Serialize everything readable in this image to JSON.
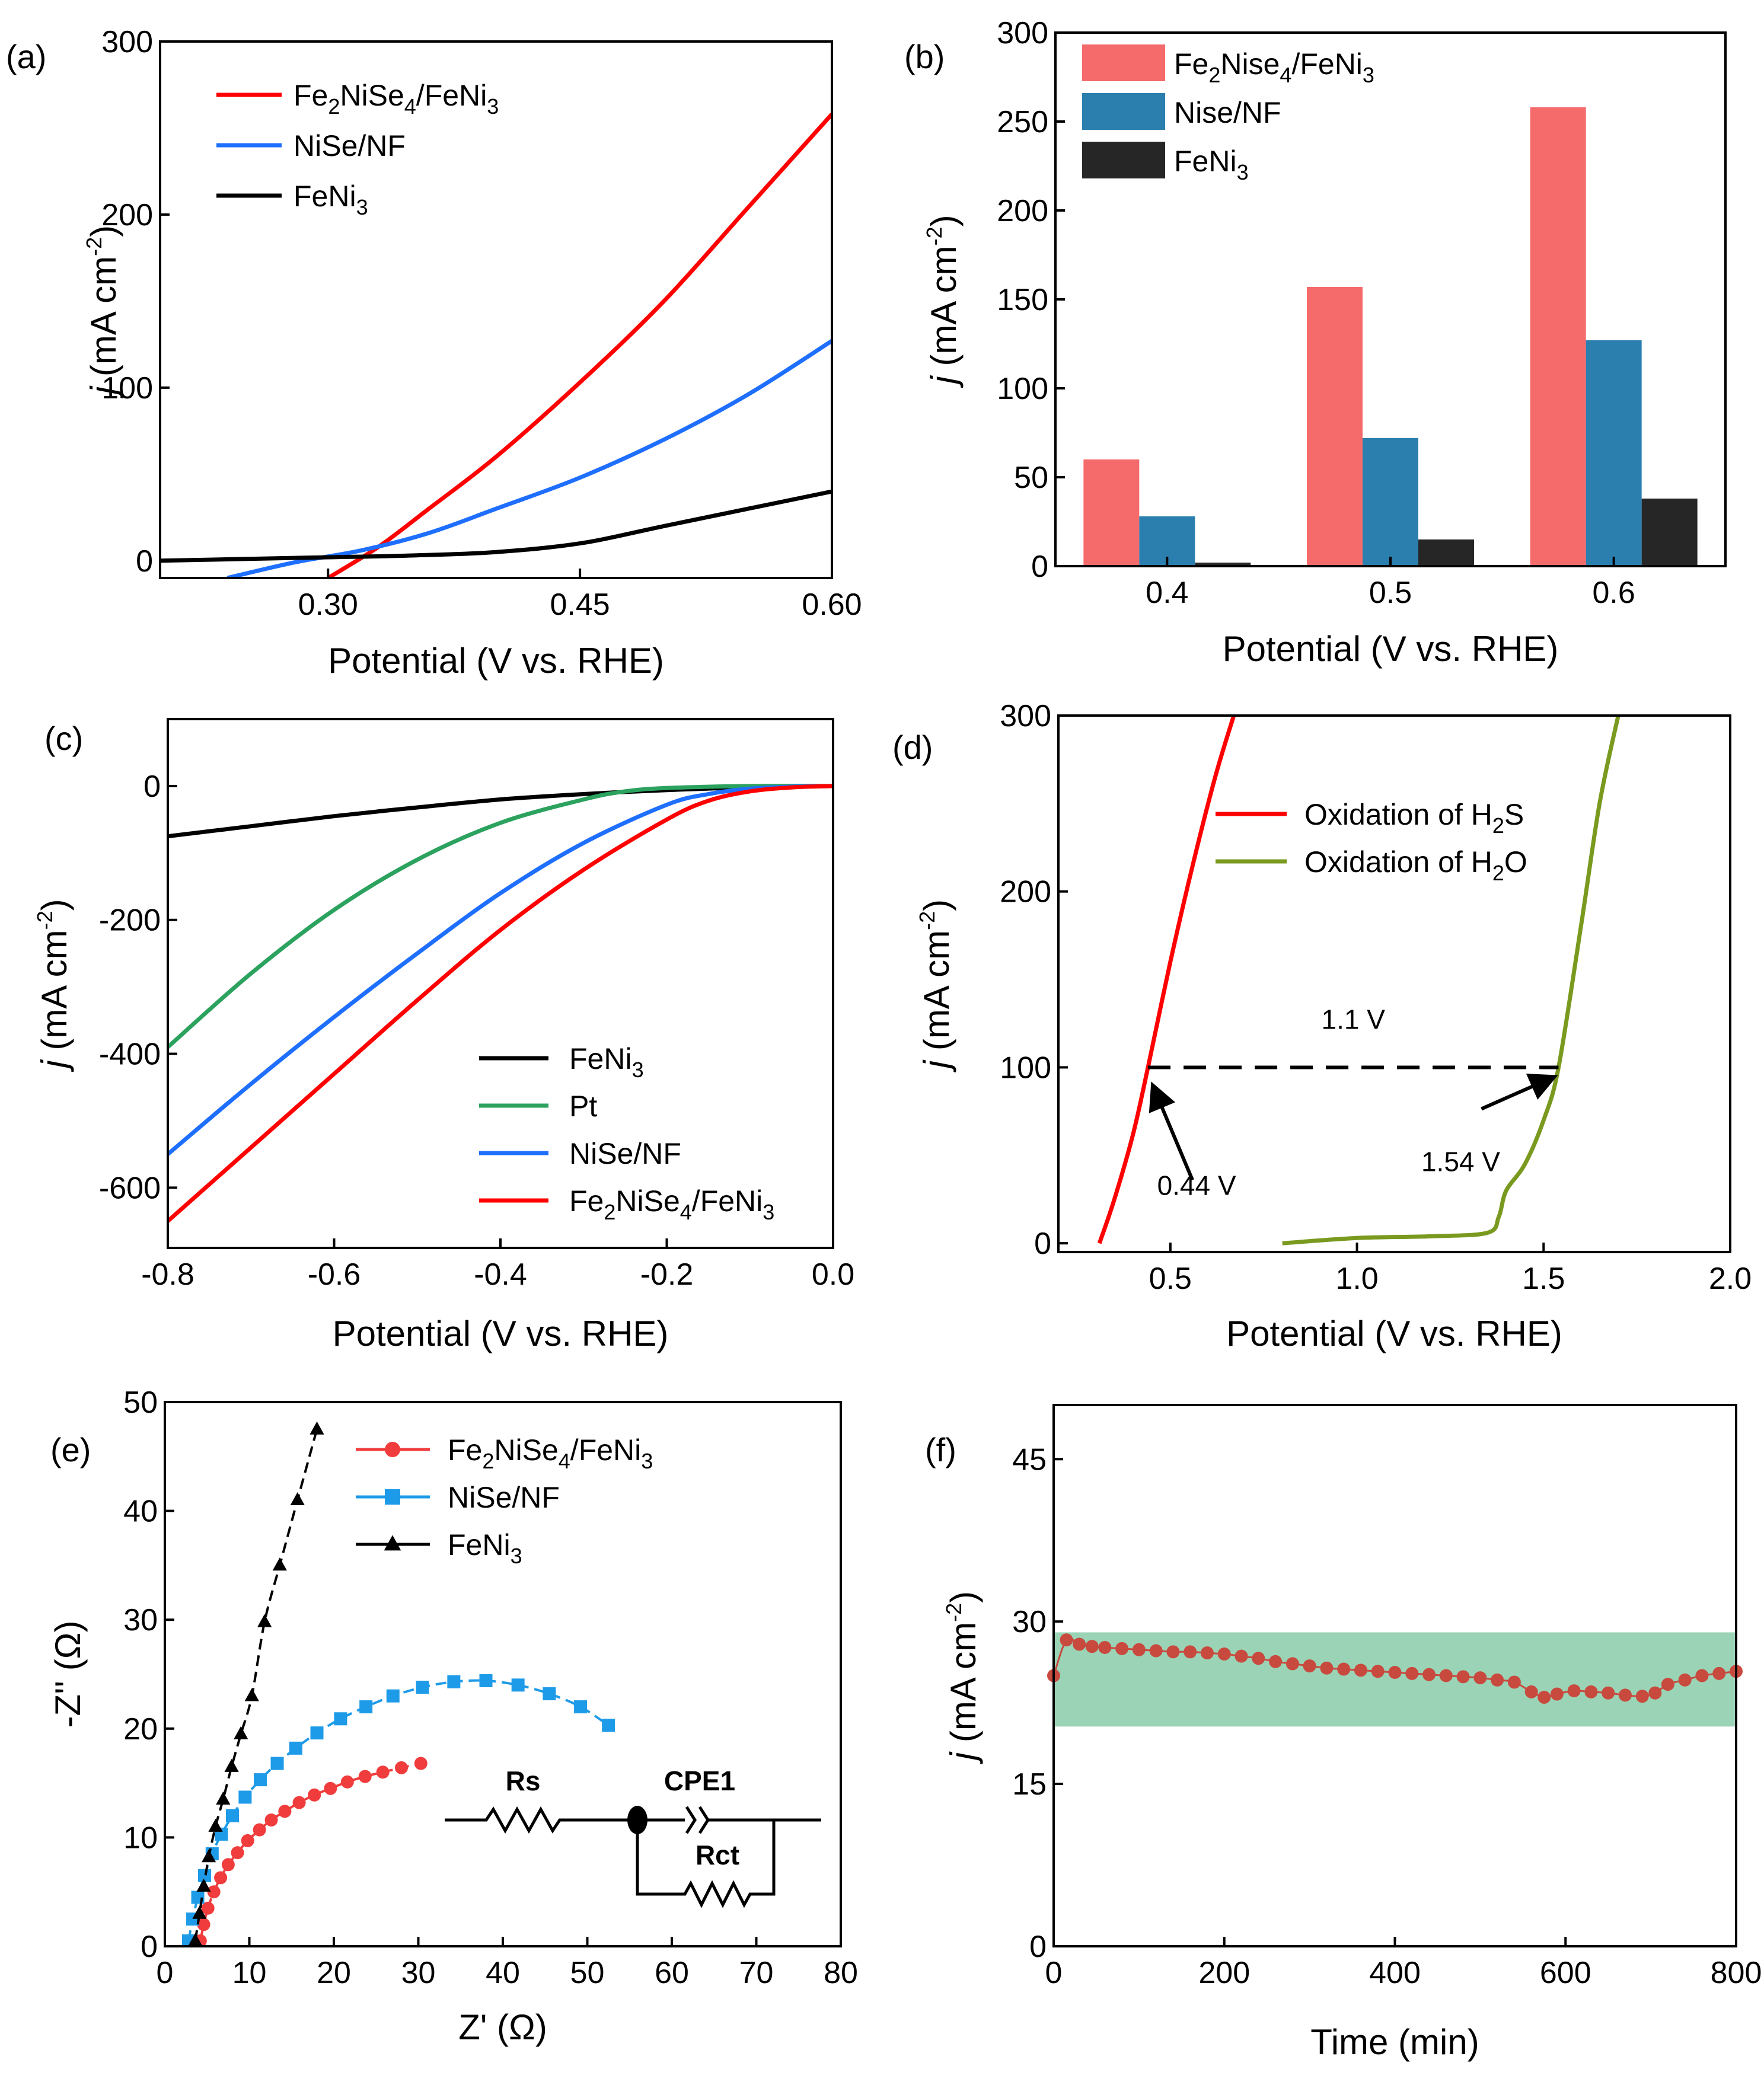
{
  "chart_data": [
    {
      "id": "a",
      "panel_label": "(a)",
      "type": "line",
      "xlabel": "Potential (V vs. RHE)",
      "ylabel": "j (mA cm-2)",
      "xlim": [
        0.2,
        0.6
      ],
      "ylim": [
        -10,
        300
      ],
      "xticks": [
        "0.30",
        "0.45",
        "0.60"
      ],
      "yticks": [
        "0",
        "100",
        "200",
        "300"
      ],
      "legend_position": "top-left",
      "series": [
        {
          "name": "Fe2NiSe4/FeNi3",
          "color": "#ff0000",
          "x": [
            0.3,
            0.33,
            0.36,
            0.4,
            0.45,
            0.5,
            0.55,
            0.6
          ],
          "y": [
            -10,
            8,
            30,
            60,
            103,
            150,
            204,
            258
          ]
        },
        {
          "name": "NiSe/NF",
          "color": "#1f6fff",
          "x": [
            0.24,
            0.28,
            0.32,
            0.36,
            0.4,
            0.45,
            0.5,
            0.55,
            0.6
          ],
          "y": [
            -10,
            -1,
            6,
            16,
            30,
            48,
            70,
            96,
            127
          ]
        },
        {
          "name": "FeNi3",
          "color": "#000000",
          "x": [
            0.2,
            0.25,
            0.3,
            0.35,
            0.4,
            0.45,
            0.5,
            0.55,
            0.6
          ],
          "y": [
            0,
            1,
            2,
            3,
            5,
            10,
            20,
            30,
            40
          ]
        }
      ]
    },
    {
      "id": "b",
      "panel_label": "(b)",
      "type": "bar",
      "xlabel": "Potential (V vs. RHE)",
      "ylabel": "j (mA cm-2)",
      "categories": [
        "0.4",
        "0.5",
        "0.6"
      ],
      "ylim": [
        0,
        300
      ],
      "yticks": [
        "0",
        "50",
        "100",
        "150",
        "200",
        "250",
        "300"
      ],
      "legend_position": "top-left",
      "series": [
        {
          "name": "Fe2Nise4/FeNi3",
          "color": "#f56b6b",
          "values": [
            60,
            157,
            258
          ]
        },
        {
          "name": "Nise/NF",
          "color": "#2a7fae",
          "values": [
            28,
            72,
            127
          ]
        },
        {
          "name": "FeNi3",
          "color": "#262626",
          "values": [
            2,
            15,
            38
          ]
        }
      ]
    },
    {
      "id": "c",
      "panel_label": "(c)",
      "type": "line",
      "xlabel": "Potential (V vs. RHE)",
      "ylabel": "j (mA cm-2)",
      "xlim": [
        -0.8,
        0.0
      ],
      "ylim": [
        -690,
        100
      ],
      "xticks": [
        "-0.8",
        "-0.6",
        "-0.4",
        "-0.2",
        "0.0"
      ],
      "yticks": [
        "0",
        "-200",
        "-400",
        "-600"
      ],
      "legend_position": "bottom-right",
      "series": [
        {
          "name": "FeNi3",
          "color": "#000000",
          "x": [
            -0.8,
            -0.7,
            -0.6,
            -0.5,
            -0.4,
            -0.3,
            -0.2,
            -0.1,
            0.0
          ],
          "y": [
            -75,
            -60,
            -45,
            -32,
            -20,
            -12,
            -6,
            -2,
            0
          ]
        },
        {
          "name": "Pt",
          "color": "#2ca25f",
          "x": [
            -0.8,
            -0.7,
            -0.6,
            -0.5,
            -0.4,
            -0.3,
            -0.25,
            -0.2,
            -0.1,
            0.0
          ],
          "y": [
            -390,
            -280,
            -185,
            -110,
            -55,
            -20,
            -8,
            -3,
            0,
            0
          ]
        },
        {
          "name": "NiSe/NF",
          "color": "#1f6fff",
          "x": [
            -0.8,
            -0.7,
            -0.6,
            -0.5,
            -0.4,
            -0.3,
            -0.2,
            -0.15,
            -0.1,
            -0.05,
            0.0
          ],
          "y": [
            -550,
            -445,
            -345,
            -250,
            -160,
            -85,
            -28,
            -12,
            -4,
            -1,
            0
          ]
        },
        {
          "name": "Fe2NiSe4/FeNi3",
          "color": "#ff0000",
          "x": [
            -0.8,
            -0.7,
            -0.6,
            -0.5,
            -0.4,
            -0.3,
            -0.2,
            -0.15,
            -0.1,
            -0.05,
            0.0
          ],
          "y": [
            -650,
            -540,
            -430,
            -320,
            -215,
            -125,
            -50,
            -22,
            -8,
            -2,
            0
          ]
        }
      ]
    },
    {
      "id": "d",
      "panel_label": "(d)",
      "type": "line",
      "xlabel": "Potential (V vs. RHE)",
      "ylabel": "j (mA cm-2)",
      "xlim": [
        0.2,
        2.0
      ],
      "ylim": [
        -5,
        300
      ],
      "xticks": [
        "0.5",
        "1.0",
        "1.5",
        "2.0"
      ],
      "yticks": [
        "0",
        "100",
        "200",
        "300"
      ],
      "legend_position": "top-right",
      "series": [
        {
          "name": "Oxidation of H2S",
          "color": "#ff0000",
          "x": [
            0.31,
            0.35,
            0.4,
            0.44,
            0.5,
            0.56,
            0.62,
            0.67
          ],
          "y": [
            0,
            25,
            62,
            100,
            160,
            215,
            265,
            300
          ]
        },
        {
          "name": "Oxidation of H2O",
          "color": "#7a9a1f",
          "x": [
            0.8,
            1.0,
            1.2,
            1.35,
            1.38,
            1.4,
            1.45,
            1.5,
            1.54,
            1.6,
            1.65,
            1.7
          ],
          "y": [
            0,
            3,
            4,
            6,
            15,
            30,
            45,
            70,
            100,
            180,
            250,
            300
          ]
        }
      ],
      "annotations": {
        "gap": "1.1 V",
        "left": "0.44 V",
        "right": "1.54 V",
        "left_x": 0.44,
        "right_x": 1.54,
        "level": 100
      }
    },
    {
      "id": "e",
      "panel_label": "(e)",
      "type": "scatter",
      "xlabel": "Z' (Ω)",
      "ylabel": "-Z'' (Ω)",
      "xlim": [
        0,
        80
      ],
      "ylim": [
        0,
        50
      ],
      "xticks": [
        "0",
        "10",
        "20",
        "30",
        "40",
        "50",
        "60",
        "70",
        "80"
      ],
      "yticks": [
        "0",
        "10",
        "20",
        "30",
        "40",
        "50"
      ],
      "legend_position": "top-center",
      "series": [
        {
          "name": "Fe2NiSe4/FeNi3",
          "color": "#f03c3c",
          "marker": "circle",
          "x": [
            4.2,
            4.6,
            5.1,
            5.8,
            6.6,
            7.5,
            8.6,
            9.8,
            11.2,
            12.6,
            14.2,
            15.9,
            17.7,
            19.6,
            21.6,
            23.7,
            25.8,
            28.0,
            30.3
          ],
          "y": [
            0.5,
            2.0,
            3.5,
            5.0,
            6.3,
            7.5,
            8.6,
            9.7,
            10.7,
            11.6,
            12.4,
            13.2,
            13.9,
            14.5,
            15.1,
            15.6,
            16.0,
            16.4,
            16.8
          ]
        },
        {
          "name": "NiSe/NF",
          "color": "#1e9be8",
          "marker": "square",
          "x": [
            2.8,
            3.3,
            3.9,
            4.7,
            5.6,
            6.7,
            8.0,
            9.5,
            11.3,
            13.3,
            15.5,
            18.0,
            20.8,
            23.8,
            27.0,
            30.5,
            34.2,
            38.0,
            41.8,
            45.5,
            49.2,
            52.5
          ],
          "y": [
            0.5,
            2.5,
            4.5,
            6.5,
            8.5,
            10.3,
            12.0,
            13.7,
            15.3,
            16.8,
            18.2,
            19.6,
            20.9,
            22.0,
            23.0,
            23.8,
            24.3,
            24.4,
            24.0,
            23.2,
            22.0,
            20.3
          ]
        },
        {
          "name": "FeNi3",
          "color": "#000000",
          "marker": "triangle",
          "x": [
            3.6,
            4.1,
            4.6,
            5.2,
            6.0,
            6.9,
            7.9,
            9.0,
            10.3,
            11.8,
            13.6,
            15.7,
            18.0
          ],
          "y": [
            0.5,
            3.0,
            5.5,
            8.2,
            11.0,
            13.5,
            16.5,
            19.5,
            23.0,
            29.8,
            35.0,
            41.0,
            47.5
          ]
        }
      ],
      "circuit": {
        "rs": "Rs",
        "cpe": "CPE1",
        "rct": "Rct"
      }
    },
    {
      "id": "f",
      "panel_label": "(f)",
      "type": "scatter",
      "xlabel": "Time (min)",
      "ylabel": "j (mA cm-2)",
      "xlim": [
        0,
        800
      ],
      "ylim": [
        0,
        50
      ],
      "xticks": [
        "0",
        "200",
        "400",
        "600",
        "800"
      ],
      "yticks": [
        "0",
        "15",
        "30",
        "45"
      ],
      "band": [
        20.3,
        29.0
      ],
      "band_color": "#9bd3b6",
      "series": [
        {
          "name": "current",
          "color": "#c84a3e",
          "marker": "circle",
          "x": [
            0,
            15,
            30,
            45,
            60,
            80,
            100,
            120,
            140,
            160,
            180,
            200,
            220,
            240,
            260,
            280,
            300,
            320,
            340,
            360,
            380,
            400,
            420,
            440,
            460,
            480,
            500,
            520,
            540,
            560,
            575,
            590,
            610,
            630,
            650,
            670,
            690,
            705,
            720,
            740,
            760,
            780,
            800
          ],
          "y": [
            25.0,
            28.3,
            27.9,
            27.7,
            27.6,
            27.5,
            27.4,
            27.3,
            27.2,
            27.2,
            27.1,
            27.0,
            26.8,
            26.6,
            26.3,
            26.1,
            25.9,
            25.7,
            25.6,
            25.5,
            25.4,
            25.3,
            25.2,
            25.1,
            25.0,
            24.9,
            24.8,
            24.6,
            24.4,
            23.5,
            23.0,
            23.3,
            23.6,
            23.5,
            23.4,
            23.2,
            23.1,
            23.4,
            24.2,
            24.6,
            25.0,
            25.2,
            25.4
          ]
        }
      ]
    }
  ]
}
